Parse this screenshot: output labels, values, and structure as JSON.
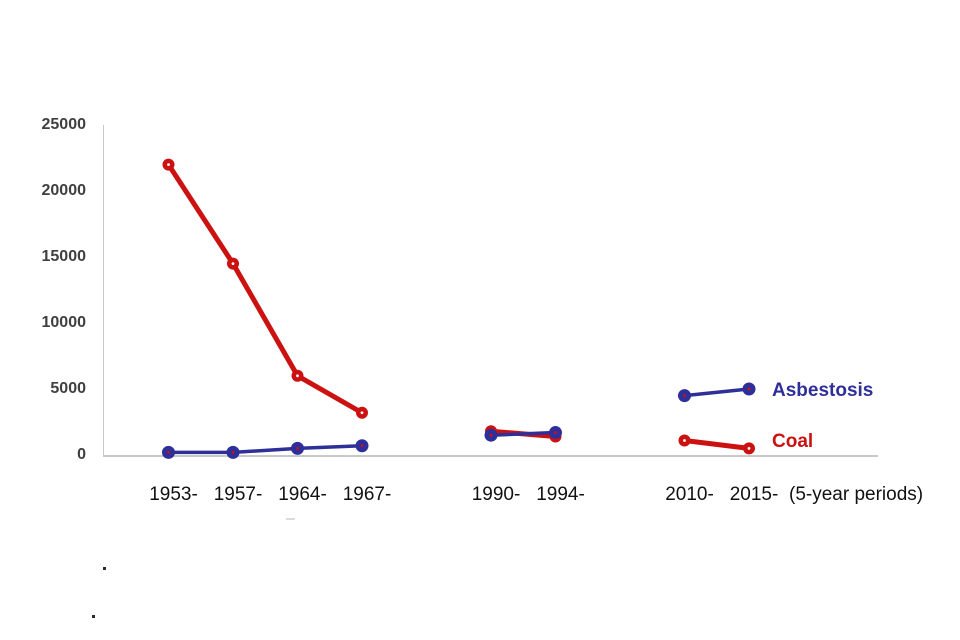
{
  "chart_data": {
    "type": "line",
    "title": "",
    "categories": [
      "1953-",
      "1957-",
      "1964-",
      "1967-",
      "1990-",
      "1994-",
      "2010-",
      "2015-"
    ],
    "slots": [
      1,
      2,
      3,
      4,
      6,
      7,
      9,
      10
    ],
    "total_slots": 12,
    "segments": [
      [
        0,
        1,
        2,
        3
      ],
      [
        4,
        5
      ],
      [
        6,
        7
      ]
    ],
    "series": [
      {
        "name": "Coal",
        "color": "#cc1111",
        "marker_center_color": "#ffffff",
        "values": [
          22000,
          14500,
          6000,
          3200,
          1800,
          1400,
          1100,
          500
        ]
      },
      {
        "name": "Asbestosis",
        "color": "#2f2f99",
        "marker_center_color": "#cc1111",
        "values": [
          200,
          200,
          500,
          700,
          1500,
          1700,
          4500,
          5000
        ]
      }
    ],
    "ylim": [
      0,
      25000
    ],
    "yticks": [
      0,
      5000,
      10000,
      15000,
      20000,
      25000
    ],
    "x_axis_note": "(5-year periods)",
    "legend_position": "right-of-last-points",
    "grid": false,
    "axis_color": "#c9c9c9",
    "ytick_color": "#3f3f3f",
    "xtick_color": "#111111"
  }
}
